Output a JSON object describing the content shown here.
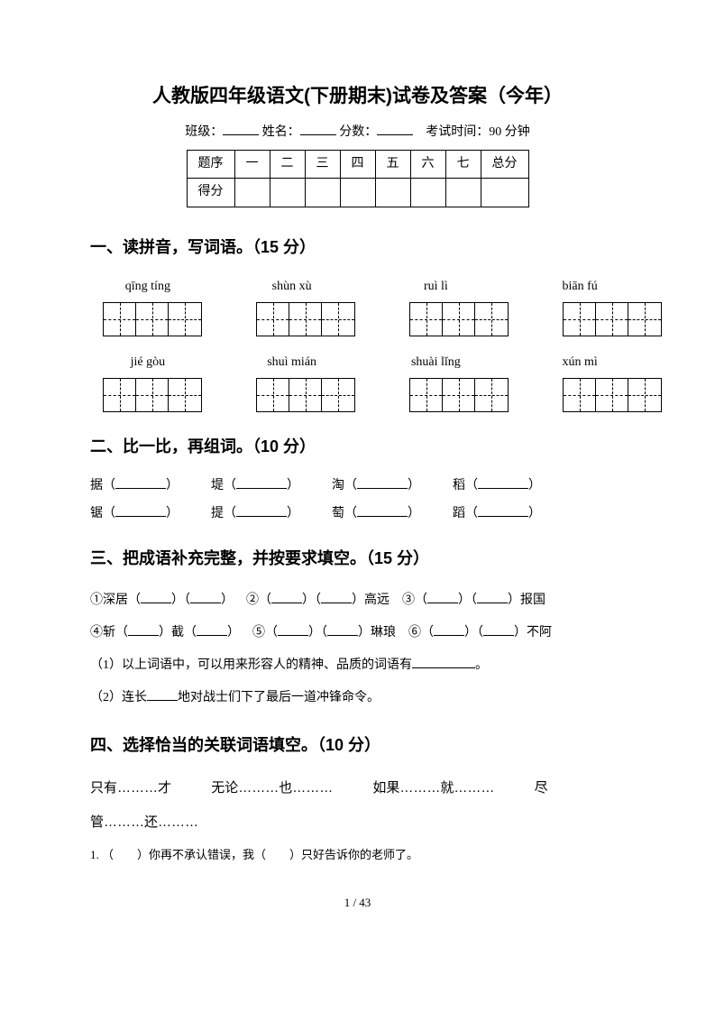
{
  "title": "人教版四年级语文(下册期末)试卷及答案（今年）",
  "info": {
    "class_label": "班级：",
    "name_label": "姓名：",
    "score_label": "分数：",
    "time_label": "考试时间：90 分钟"
  },
  "score_table": {
    "row1": [
      "题序",
      "一",
      "二",
      "三",
      "四",
      "五",
      "六",
      "七",
      "总分"
    ],
    "row2_label": "得分"
  },
  "section1": {
    "heading": "一、读拼音，写词语。（15 分）",
    "pinyin_row1": [
      "qīng tíng",
      "shùn xù",
      "ruì lì",
      "biān fú"
    ],
    "pinyin_row2": [
      "jié gòu",
      "shuì mián",
      "shuài lǐng",
      "xún mì"
    ],
    "cells_per_grid": 3
  },
  "section2": {
    "heading": "二、比一比，再组词。（10 分）",
    "row1": [
      "据",
      "堤",
      "淘",
      "稻"
    ],
    "row2": [
      "锯",
      "提",
      "萄",
      "蹈"
    ]
  },
  "section3": {
    "heading": "三、把成语补充完整，并按要求填空。（15 分）",
    "line1_parts": {
      "p1a": "①深居（",
      "p1b": "）（",
      "p1c": "）",
      "p2a": "②（",
      "p2b": "）（",
      "p2c": "）高远",
      "p3a": "③（",
      "p3b": "）（",
      "p3c": "）报国"
    },
    "line2_parts": {
      "p4a": "④斩（",
      "p4b": "）截（",
      "p4c": "）",
      "p5a": "⑤（",
      "p5b": "）（",
      "p5c": "）琳琅",
      "p6a": "⑥（",
      "p6b": "）（",
      "p6c": "）不阿"
    },
    "sub1": "（1）以上词语中，可以用来形容人的精神、品质的词语有",
    "sub1_end": "。",
    "sub2a": "（2）连长",
    "sub2b": "地对战士们下了最后一道冲锋命令。"
  },
  "section4": {
    "heading": "四、选择恰当的关联词语填空。（10 分）",
    "words": [
      "只有………才",
      "无论………也………",
      "如果………就………",
      "尽"
    ],
    "words_cont": "管………还………",
    "q1a": "1. （　　）你再不承认错误，我（　　）只好告诉你的老师了。"
  },
  "page_number": "1 / 43",
  "colors": {
    "text": "#000000",
    "background": "#ffffff"
  }
}
